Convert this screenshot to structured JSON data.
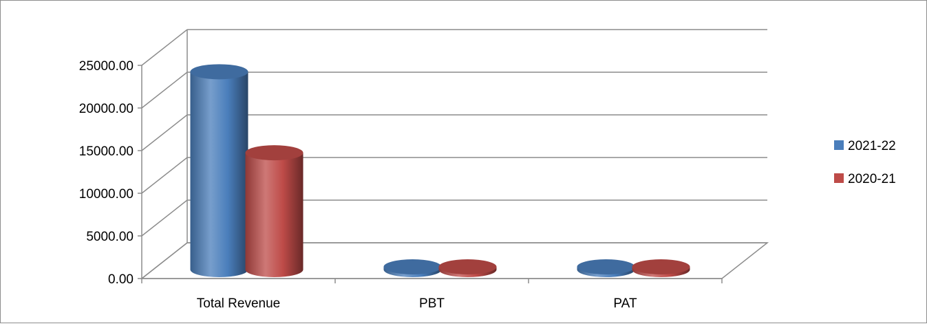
{
  "chart_data": {
    "type": "bar",
    "style": "3d-cylinder",
    "categories": [
      "Total Revenue",
      "PBT",
      "PAT"
    ],
    "series": [
      {
        "name": "2021-22",
        "values": [
          23200,
          160,
          120
        ],
        "color": "#4a7ebb"
      },
      {
        "name": "2020-21",
        "values": [
          13700,
          90,
          80
        ],
        "color": "#be4b48"
      }
    ],
    "ylim": [
      0,
      25000
    ],
    "y_ticks": [
      "0.00",
      "5000.00",
      "10000.00",
      "15000.00",
      "20000.00",
      "25000.00"
    ],
    "title": "",
    "xlabel": "",
    "ylabel": "",
    "grid": true,
    "legend_position": "right"
  }
}
